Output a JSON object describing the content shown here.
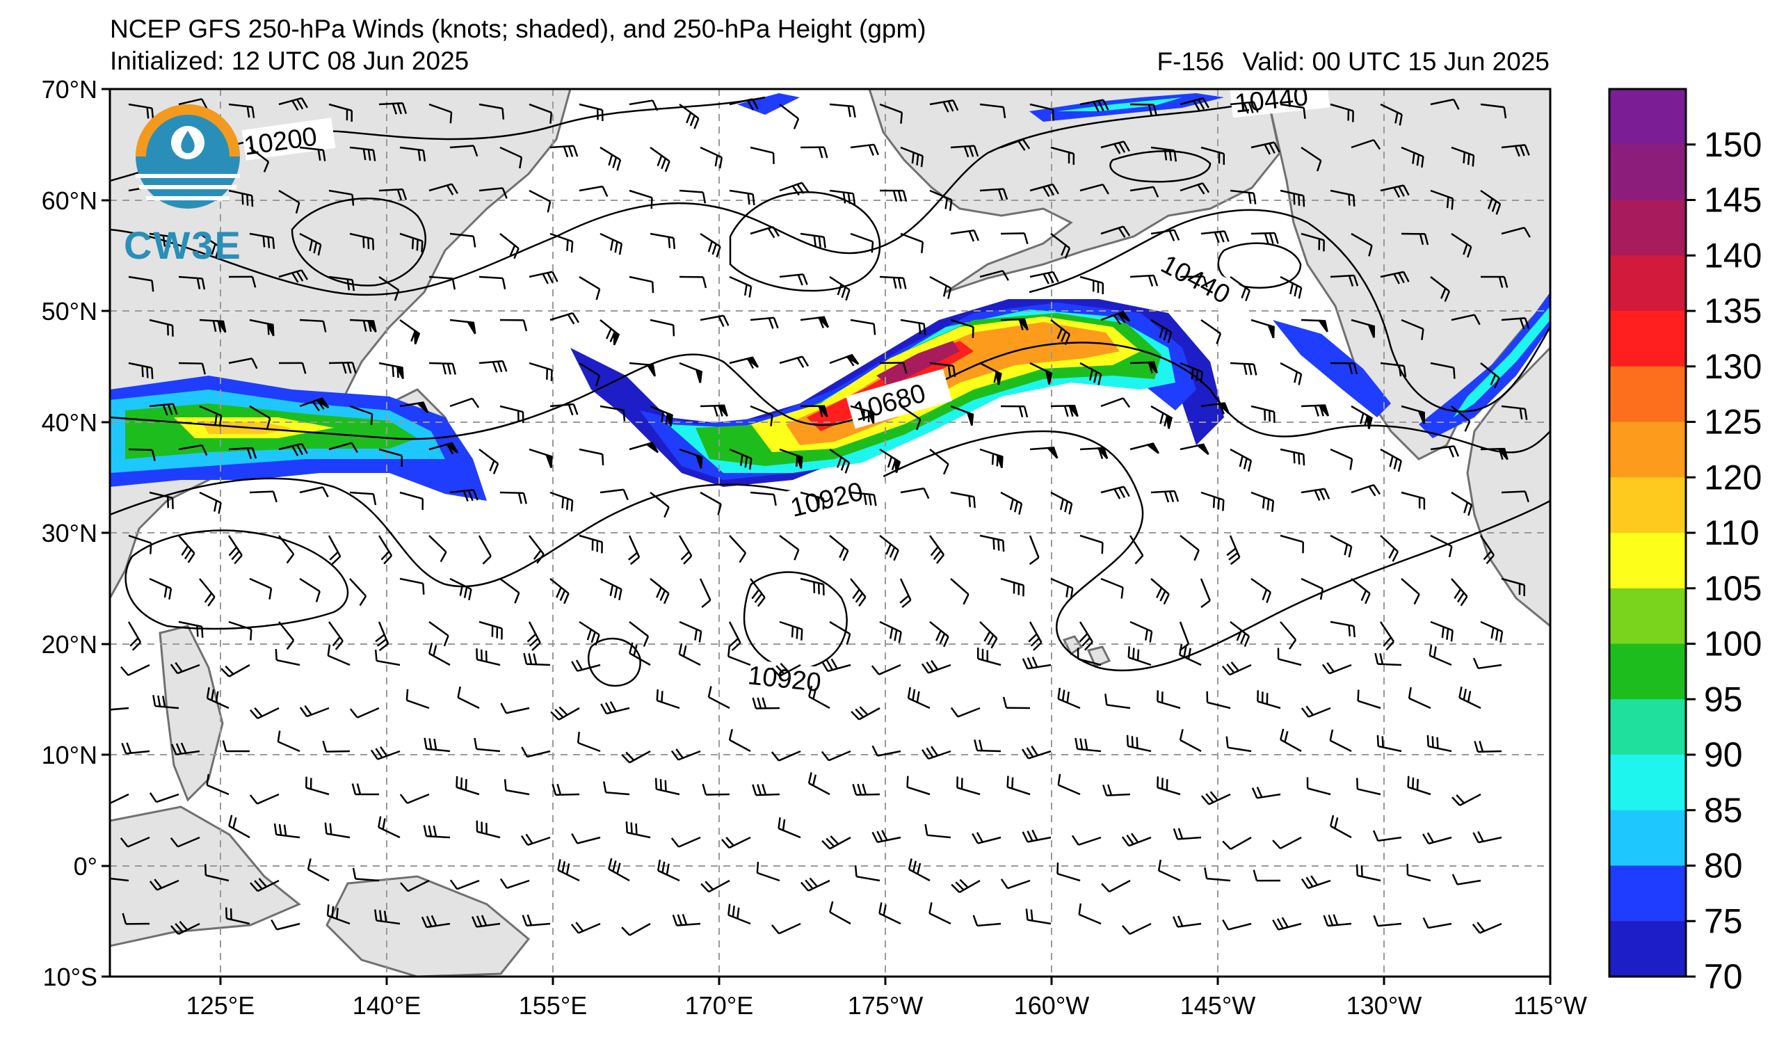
{
  "header": {
    "title": "NCEP GFS 250-hPa Winds (knots; shaded), and 250-hPa Height (gpm)",
    "initialized": "Initialized: 12 UTC 08 Jun 2025",
    "forecast_hour": "F-156",
    "valid": "Valid: 00 UTC 15 Jun 2025"
  },
  "logo": {
    "text": "CW3E",
    "color": "#2a8fb8",
    "accent": "#f39a1e"
  },
  "map": {
    "projection": "plate carree",
    "lon_range": [
      115,
      245
    ],
    "lat_range": [
      -10,
      70
    ],
    "lat_ticks": [
      "70°N",
      "60°N",
      "50°N",
      "40°N",
      "30°N",
      "20°N",
      "10°N",
      "0°",
      "10°S"
    ],
    "lon_ticks": [
      "125°E",
      "140°E",
      "155°E",
      "170°E",
      "175°W",
      "160°W",
      "145°W",
      "130°W",
      "115°W"
    ],
    "land_color": "#e3e3e3",
    "ocean_color": "#ffffff",
    "gridlines": true
  },
  "contours": {
    "variable": "250-hPa Height (gpm)",
    "labels": [
      "10200",
      "10440",
      "10440",
      "10680",
      "10920",
      "10920"
    ]
  },
  "colorbar": {
    "variable": "250-hPa wind speed (knots)",
    "tick_labels": [
      "150",
      "145",
      "140",
      "135",
      "130",
      "125",
      "120",
      "110",
      "105",
      "100",
      "95",
      "90",
      "85",
      "80",
      "75",
      "70"
    ],
    "colors": [
      "#7b1e95",
      "#8c1d7a",
      "#a81b5c",
      "#d21a3c",
      "#fe1f1e",
      "#fe6f1d",
      "#fd9c1c",
      "#fdca1d",
      "#fefe1b",
      "#7ad41e",
      "#1ebd1e",
      "#1fe19d",
      "#1ef5ef",
      "#1ec8ff",
      "#1f3dff",
      "#1e1ec8"
    ]
  }
}
